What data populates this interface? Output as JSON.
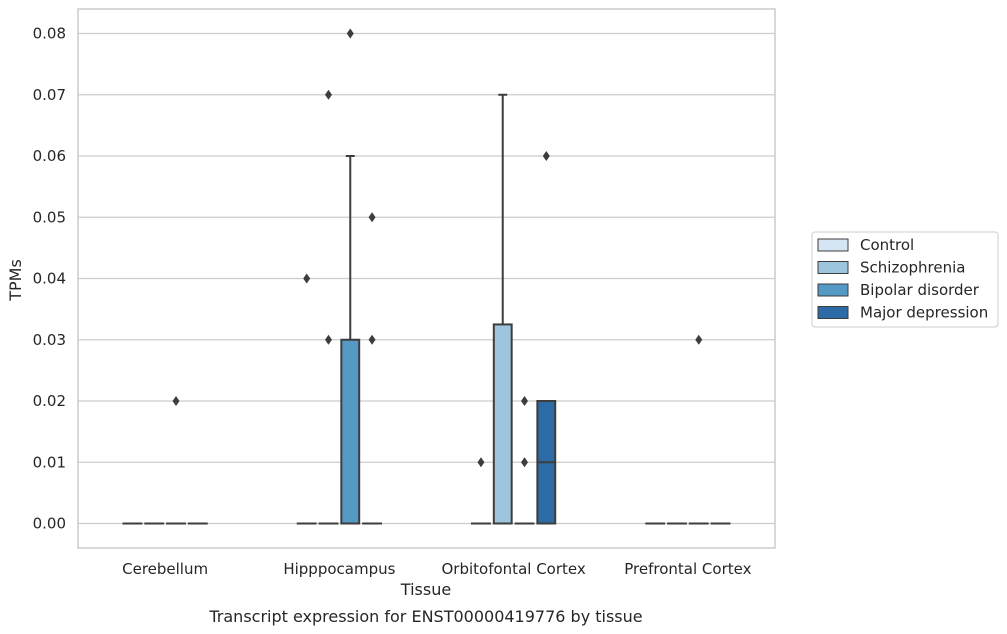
{
  "chart_data": {
    "type": "box",
    "title": "",
    "caption": "Transcript expression for ENST00000419776 by tissue",
    "xlabel": "Tissue",
    "ylabel": "TPMs",
    "ylim": [
      -0.004,
      0.084
    ],
    "yticks": [
      "0.00",
      "0.01",
      "0.02",
      "0.03",
      "0.04",
      "0.05",
      "0.06",
      "0.07",
      "0.08"
    ],
    "grid": true,
    "legend_position": "right",
    "categories": [
      "Cerebellum",
      "Hipppocampus",
      "Orbitofontal Cortex",
      "Prefrontal Cortex"
    ],
    "series": [
      {
        "name": "Control",
        "color": "#d6e5f3",
        "boxes": [
          {
            "q1": 0,
            "median": 0,
            "q3": 0,
            "whisker_low": 0,
            "whisker_high": 0,
            "outliers": []
          },
          {
            "q1": 0,
            "median": 0,
            "q3": 0,
            "whisker_low": 0,
            "whisker_high": 0,
            "outliers": [
              0.04
            ]
          },
          {
            "q1": 0,
            "median": 0,
            "q3": 0,
            "whisker_low": 0,
            "whisker_high": 0,
            "outliers": [
              0.01
            ]
          },
          {
            "q1": 0,
            "median": 0,
            "q3": 0,
            "whisker_low": 0,
            "whisker_high": 0,
            "outliers": []
          }
        ]
      },
      {
        "name": "Schizophrenia",
        "color": "#9dc5dd",
        "boxes": [
          {
            "q1": 0,
            "median": 0,
            "q3": 0,
            "whisker_low": 0,
            "whisker_high": 0,
            "outliers": []
          },
          {
            "q1": 0,
            "median": 0,
            "q3": 0,
            "whisker_low": 0,
            "whisker_high": 0,
            "outliers": [
              0.07,
              0.03
            ]
          },
          {
            "q1": 0,
            "median": 0,
            "q3": 0.0325,
            "whisker_low": 0,
            "whisker_high": 0.07,
            "outliers": []
          },
          {
            "q1": 0,
            "median": 0,
            "q3": 0,
            "whisker_low": 0,
            "whisker_high": 0,
            "outliers": []
          }
        ]
      },
      {
        "name": "Bipolar disorder",
        "color": "#5599c5",
        "boxes": [
          {
            "q1": 0,
            "median": 0,
            "q3": 0,
            "whisker_low": 0,
            "whisker_high": 0,
            "outliers": [
              0.02
            ]
          },
          {
            "q1": 0,
            "median": 0,
            "q3": 0.03,
            "whisker_low": 0,
            "whisker_high": 0.06,
            "outliers": [
              0.08
            ]
          },
          {
            "q1": 0,
            "median": 0,
            "q3": 0,
            "whisker_low": 0,
            "whisker_high": 0,
            "outliers": [
              0.02,
              0.01
            ]
          },
          {
            "q1": 0,
            "median": 0,
            "q3": 0,
            "whisker_low": 0,
            "whisker_high": 0,
            "outliers": [
              0.03
            ]
          }
        ]
      },
      {
        "name": "Major depression",
        "color": "#2d6ba6",
        "boxes": [
          {
            "q1": 0,
            "median": 0,
            "q3": 0,
            "whisker_low": 0,
            "whisker_high": 0,
            "outliers": []
          },
          {
            "q1": 0,
            "median": 0,
            "q3": 0,
            "whisker_low": 0,
            "whisker_high": 0,
            "outliers": [
              0.05,
              0.03
            ]
          },
          {
            "q1": 0,
            "median": 0.01,
            "q3": 0.02,
            "whisker_low": 0,
            "whisker_high": 0.02,
            "outliers": [
              0.06
            ]
          },
          {
            "q1": 0,
            "median": 0,
            "q3": 0,
            "whisker_low": 0,
            "whisker_high": 0,
            "outliers": []
          }
        ]
      }
    ]
  }
}
